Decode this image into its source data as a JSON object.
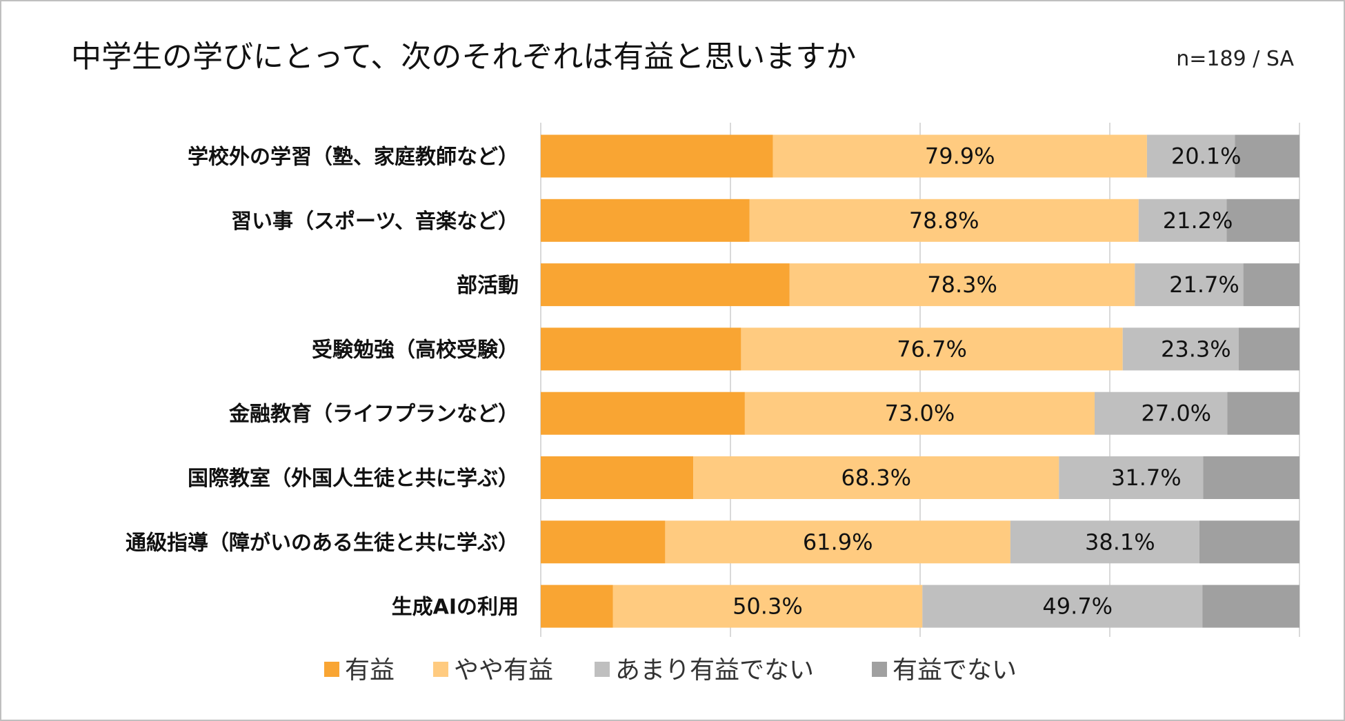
{
  "chart_data": {
    "type": "bar",
    "orientation": "horizontal",
    "stacked": true,
    "title": "中学生の学びにとって、次のそれぞれは有益と思いますか",
    "subtitle": "n=189 / SA",
    "xlim": [
      0,
      100
    ],
    "grid": true,
    "legend_position": "bottom",
    "categories": [
      "学校外の学習（塾、家庭教師など）",
      "習い事（スポーツ、音楽など）",
      "部活動",
      "受験勉強（高校受験）",
      "金融教育（ライフプランなど）",
      "国際教室（外国人生徒と共に学ぶ）",
      "通級指導（障がいのある生徒と共に学ぶ）",
      "生成AIの利用"
    ],
    "series": [
      {
        "name": "有益",
        "color": "#F9A533",
        "values": [
          30.6,
          27.5,
          32.8,
          26.4,
          26.9,
          20.1,
          16.4,
          9.5
        ]
      },
      {
        "name": "やや有益",
        "color": "#FFCB80",
        "values": [
          49.3,
          51.3,
          45.5,
          50.3,
          46.1,
          48.2,
          45.5,
          40.8
        ]
      },
      {
        "name": "あまり有益でない",
        "color": "#BFBFBF",
        "values": [
          11.6,
          11.6,
          14.3,
          15.3,
          17.5,
          19.0,
          24.9,
          36.9
        ]
      },
      {
        "name": "有益でない",
        "color": "#A0A0A0",
        "values": [
          8.5,
          9.6,
          7.4,
          8.0,
          9.5,
          12.7,
          13.2,
          12.8
        ]
      }
    ],
    "group_labels": {
      "positive": [
        "79.9%",
        "78.8%",
        "78.3%",
        "76.7%",
        "73.0%",
        "68.3%",
        "61.9%",
        "50.3%"
      ],
      "negative": [
        "20.1%",
        "21.2%",
        "21.7%",
        "23.3%",
        "27.0%",
        "31.7%",
        "38.1%",
        "49.7%"
      ]
    }
  }
}
